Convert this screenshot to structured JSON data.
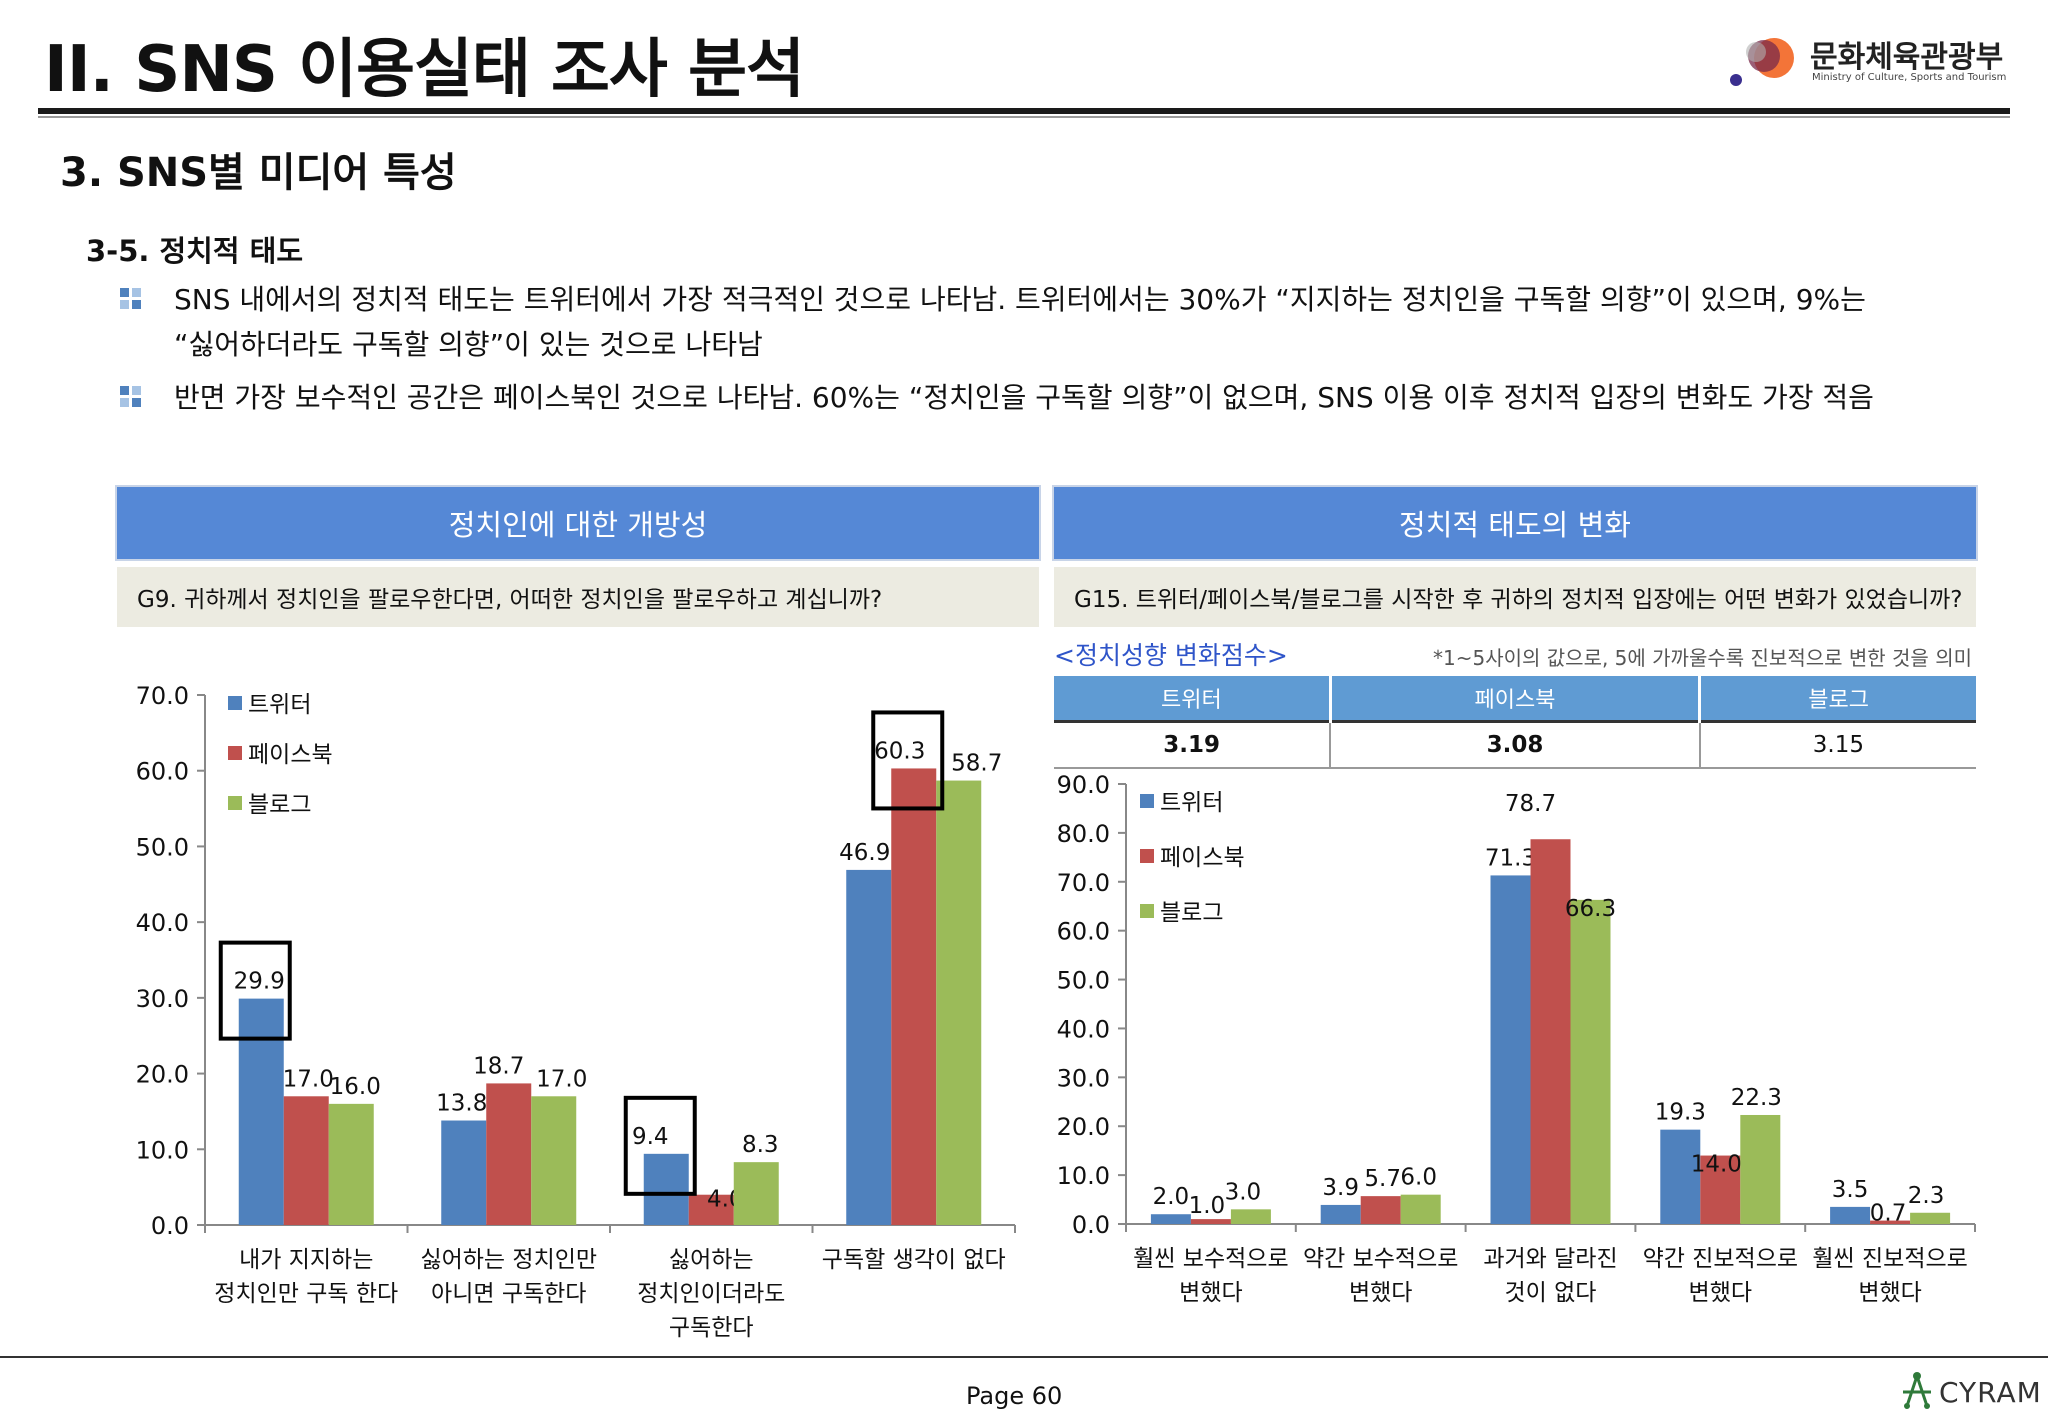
{
  "header": {
    "title": "II. SNS 이용실태 조사 분석",
    "org_ko": "문화체육관광부",
    "org_en": "Ministry of Culture, Sports and Tourism"
  },
  "section_title": "3. SNS별 미디어 특성",
  "subsection_title": "3-5. 정치적 태도",
  "bullets": [
    "SNS 내에서의 정치적 태도는 트위터에서 가장 적극적인 것으로 나타남. 트위터에서는 30%가 “지지하는 정치인을 구독할 의향”이 있으며, 9%는",
    "“싫어하더라도 구독할 의향”이 있는 것으로 나타남",
    "반면 가장 보수적인 공간은 페이스북인 것으로 나타남. 60%는 “정치인을 구독할 의향”이 없으며, SNS 이용 이후 정치적 입장의 변화도 가장 적음"
  ],
  "left_panel": {
    "title": "정치인에 대한 개방성",
    "question": "G9. 귀하께서 정치인을 팔로우한다면, 어떠한 정치인을 팔로우하고 계십니까?"
  },
  "right_panel": {
    "title": "정치적 태도의 변화",
    "question": "G15. 트위터/페이스북/블로그를 시작한 후 귀하의 정치적 입장에는 어떤 변화가 있었습니까?",
    "score_title": "<정치성향 변화점수>",
    "score_note": "*1~5사이의 값으로, 5에 가까울수록 진보적으로 변한 것을 의미",
    "score_headers": [
      "트위터",
      "페이스북",
      "블로그"
    ],
    "score_values": [
      "3.19",
      "3.08",
      "3.15"
    ]
  },
  "colors": {
    "twitter": "#4f81bd",
    "facebook": "#c0504d",
    "blog": "#9bbb59",
    "panel_head": "#5588d6",
    "panel_q": "#ecebe1"
  },
  "chart_data": [
    {
      "type": "bar",
      "categories": [
        [
          "내가 지지하는",
          "정치인만 구독 한다"
        ],
        [
          "싫어하는 정치인만",
          "아니면 구독한다"
        ],
        [
          "싫어하는",
          "정치인이더라도",
          "구독한다"
        ],
        [
          "구독할 생각이 없다"
        ]
      ],
      "series": [
        {
          "name": "트위터",
          "values": [
            29.9,
            13.8,
            9.4,
            46.9
          ]
        },
        {
          "name": "페이스북",
          "values": [
            17.0,
            18.7,
            4.0,
            60.3
          ]
        },
        {
          "name": "블로그",
          "values": [
            16.0,
            17.0,
            8.3,
            58.7
          ]
        }
      ],
      "ylim": [
        0,
        70
      ],
      "yticks": [
        "0.0",
        "10.0",
        "20.0",
        "30.0",
        "40.0",
        "50.0",
        "60.0",
        "70.0"
      ],
      "legend": "top-left",
      "highlighted": [
        [
          0,
          0
        ],
        [
          2,
          0
        ],
        [
          3,
          1
        ]
      ]
    },
    {
      "type": "bar",
      "categories": [
        [
          "훨씬 보수적으로",
          "변했다"
        ],
        [
          "약간 보수적으로",
          "변했다"
        ],
        [
          "과거와 달라진",
          "것이 없다"
        ],
        [
          "약간 진보적으로",
          "변했다"
        ],
        [
          "훨씬 진보적으로",
          "변했다"
        ]
      ],
      "series": [
        {
          "name": "트위터",
          "values": [
            2.0,
            3.9,
            71.3,
            19.3,
            3.5
          ]
        },
        {
          "name": "페이스북",
          "values": [
            1.0,
            5.7,
            78.7,
            14.0,
            0.7
          ]
        },
        {
          "name": "블로그",
          "values": [
            3.0,
            6.0,
            66.3,
            22.3,
            2.3
          ]
        }
      ],
      "ylim": [
        0,
        90
      ],
      "yticks": [
        "0.0",
        "10.0",
        "20.0",
        "30.0",
        "40.0",
        "50.0",
        "60.0",
        "70.0",
        "80.0",
        "90.0"
      ],
      "legend": "top-left"
    }
  ],
  "footer": {
    "page": "Page  60",
    "brand": "CYRAM"
  }
}
